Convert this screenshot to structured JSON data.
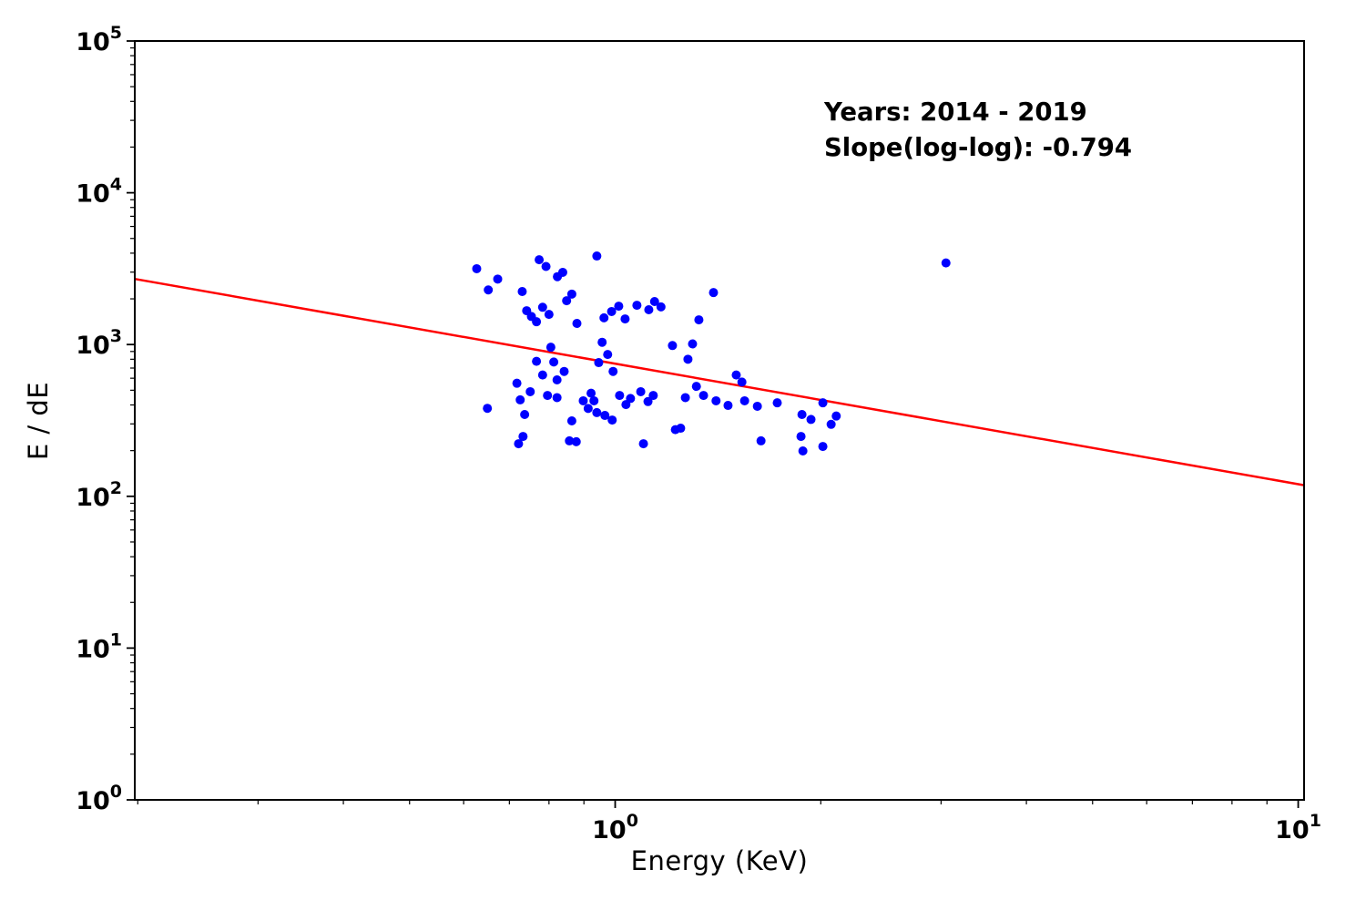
{
  "figure": {
    "background": "#ffffff",
    "frame_color": "#000000"
  },
  "chart_data": {
    "type": "scatter",
    "title": "",
    "xlabel": "Energy (KeV)",
    "ylabel": "E / dE",
    "x_scale": "log",
    "y_scale": "log",
    "xlim": [
      0.198,
      10.2
    ],
    "ylim": [
      1,
      100000
    ],
    "grid": false,
    "legend": "none",
    "tick_label_base": "10",
    "x_tick_exponents": [
      0,
      1
    ],
    "y_tick_exponents": [
      0,
      1,
      2,
      3,
      4,
      5
    ],
    "annotation": {
      "line1": "Years: 2014 - 2019",
      "line2": "Slope(log-log): -0.794"
    },
    "marker_color": "#0000ff",
    "marker_radius": 5,
    "fit_line": {
      "slope_loglog": -0.794,
      "coefficient_at_x1": 748,
      "color": "#ff0000",
      "width": 2.5
    },
    "points": [
      [
        0.627,
        3160
      ],
      [
        0.652,
        2290
      ],
      [
        0.673,
        2700
      ],
      [
        0.731,
        2235
      ],
      [
        0.742,
        1670
      ],
      [
        0.774,
        3620
      ],
      [
        0.792,
        3270
      ],
      [
        0.823,
        2800
      ],
      [
        0.838,
        2990
      ],
      [
        0.94,
        3830
      ],
      [
        0.849,
        1945
      ],
      [
        0.864,
        2150
      ],
      [
        0.754,
        1530
      ],
      [
        0.767,
        1413
      ],
      [
        0.783,
        1760
      ],
      [
        0.8,
        1580
      ],
      [
        0.879,
        1378
      ],
      [
        0.963,
        1500
      ],
      [
        0.988,
        1650
      ],
      [
        1.012,
        1790
      ],
      [
        1.034,
        1475
      ],
      [
        1.076,
        1815
      ],
      [
        1.12,
        1695
      ],
      [
        1.142,
        1920
      ],
      [
        1.167,
        1770
      ],
      [
        1.393,
        2200
      ],
      [
        1.326,
        1455
      ],
      [
        0.767,
        775
      ],
      [
        0.783,
        630
      ],
      [
        0.805,
        960
      ],
      [
        0.813,
        767
      ],
      [
        0.822,
        585
      ],
      [
        0.946,
        760
      ],
      [
        0.957,
        1035
      ],
      [
        0.975,
        860
      ],
      [
        0.993,
        665
      ],
      [
        1.213,
        985
      ],
      [
        1.278,
        800
      ],
      [
        1.298,
        1010
      ],
      [
        1.504,
        630
      ],
      [
        1.533,
        566
      ],
      [
        0.842,
        665
      ],
      [
        0.65,
        380
      ],
      [
        0.718,
        556
      ],
      [
        0.726,
        432
      ],
      [
        0.737,
        346
      ],
      [
        0.751,
        489
      ],
      [
        0.796,
        462
      ],
      [
        0.822,
        447
      ],
      [
        0.864,
        314
      ],
      [
        0.898,
        426
      ],
      [
        0.913,
        379
      ],
      [
        0.922,
        478
      ],
      [
        0.931,
        426
      ],
      [
        0.94,
        356
      ],
      [
        0.966,
        341
      ],
      [
        0.99,
        318
      ],
      [
        1.015,
        462
      ],
      [
        1.037,
        402
      ],
      [
        1.053,
        441
      ],
      [
        1.09,
        489
      ],
      [
        1.117,
        421
      ],
      [
        1.137,
        462
      ],
      [
        1.247,
        281
      ],
      [
        1.267,
        447
      ],
      [
        1.315,
        530
      ],
      [
        1.347,
        462
      ],
      [
        1.405,
        426
      ],
      [
        1.463,
        397
      ],
      [
        1.547,
        426
      ],
      [
        1.615,
        392
      ],
      [
        1.727,
        413
      ],
      [
        1.877,
        346
      ],
      [
        1.935,
        321
      ],
      [
        2.014,
        413
      ],
      [
        2.071,
        298
      ],
      [
        2.107,
        338
      ],
      [
        0.722,
        222
      ],
      [
        0.733,
        248
      ],
      [
        0.857,
        232
      ],
      [
        0.877,
        229
      ],
      [
        1.1,
        222
      ],
      [
        1.225,
        275
      ],
      [
        1.635,
        232
      ],
      [
        1.871,
        248
      ],
      [
        1.883,
        199
      ],
      [
        2.014,
        213
      ],
      [
        3.05,
        3450
      ]
    ]
  }
}
